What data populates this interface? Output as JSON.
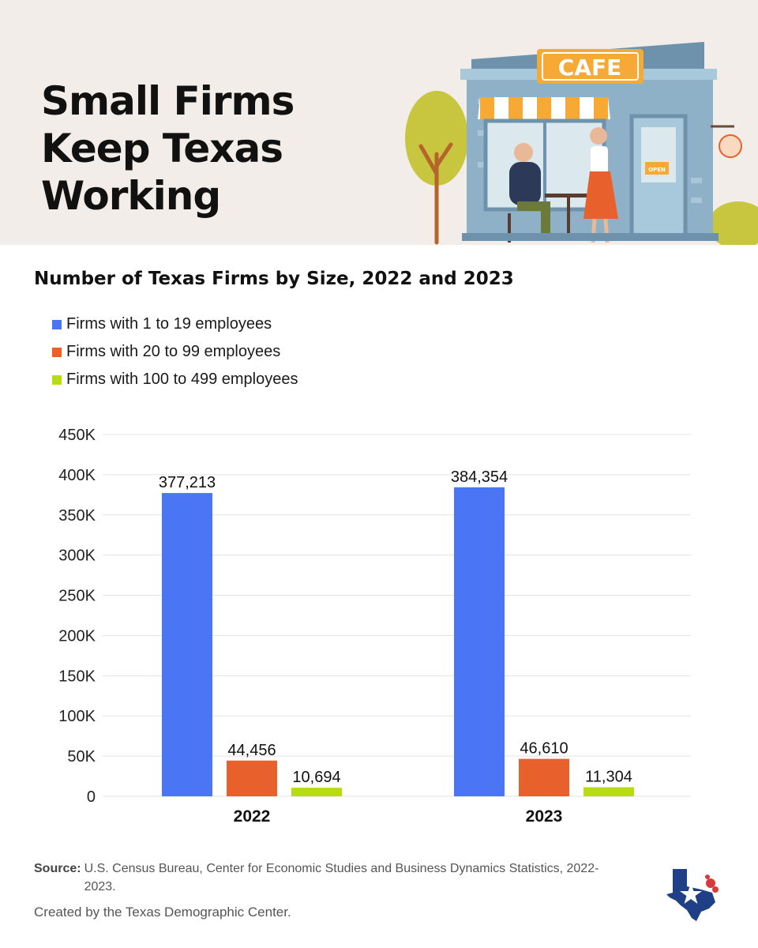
{
  "header": {
    "title": "Small Firms Keep Texas Working",
    "illustration_icon": "cafe-illustration-icon",
    "cafe_sign": "CAFE",
    "door_sign": "OPEN"
  },
  "chart_data": {
    "type": "bar",
    "title": "Number of Texas Firms by Size, 2022 and 2023",
    "categories": [
      "2022",
      "2023"
    ],
    "series": [
      {
        "name": "Firms with 1 to 19 employees",
        "values": [
          377213,
          384354
        ],
        "labels": [
          "377,213",
          "384,354"
        ],
        "color": "#4a75f5"
      },
      {
        "name": "Firms with 20 to 99 employees",
        "values": [
          44456,
          46610
        ],
        "labels": [
          "44,456",
          "46,610"
        ],
        "color": "#e8612c"
      },
      {
        "name": "Firms with 100 to 499 employees",
        "values": [
          10694,
          11304
        ],
        "labels": [
          "10,694",
          "11,304"
        ],
        "color": "#b8dc12"
      }
    ],
    "ylim": [
      0,
      450000
    ],
    "yticks": [
      0,
      50000,
      100000,
      150000,
      200000,
      250000,
      300000,
      350000,
      400000,
      450000
    ],
    "ytick_labels": [
      "0",
      "50K",
      "100K",
      "150K",
      "200K",
      "250K",
      "300K",
      "350K",
      "400K",
      "450K"
    ],
    "grid": true,
    "legend_position": "top-left",
    "xlabel": "",
    "ylabel": ""
  },
  "footer": {
    "source_label": "Source:",
    "source_text": "U.S. Census Bureau, Center for Economic Studies and Business Dynamics Statistics, 2022-2023.",
    "credit": "Created by the Texas Demographic Center.",
    "logo_icon": "texas-map-star-logo-icon"
  }
}
